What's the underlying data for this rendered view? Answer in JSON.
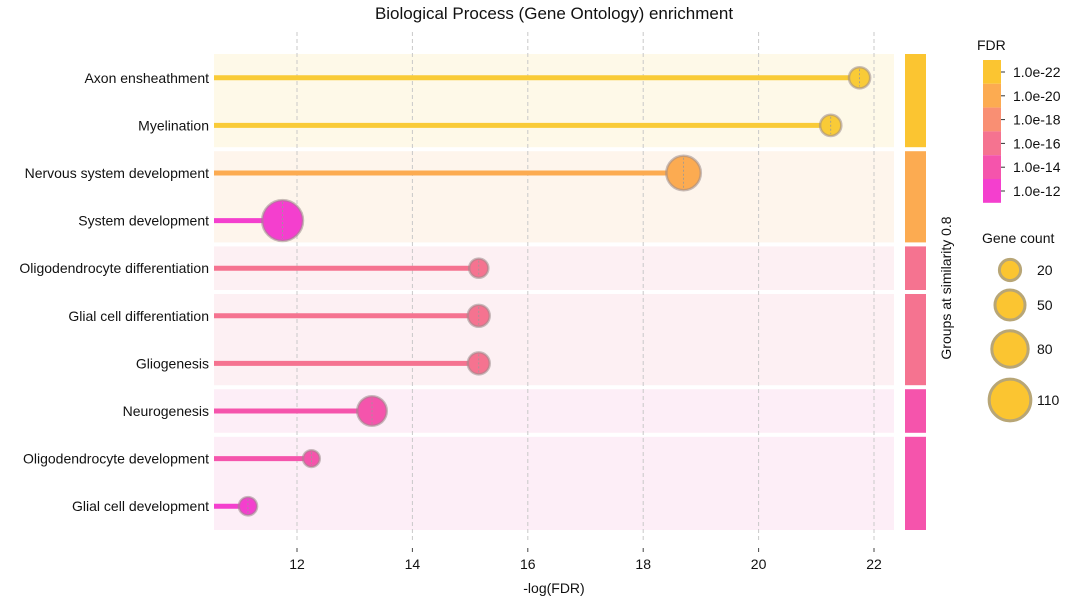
{
  "chart_data": {
    "type": "lollipop",
    "title": "Biological Process (Gene Ontology) enrichment",
    "xlabel": "-log(FDR)",
    "xlim": [
      10.5,
      22.35
    ],
    "xticks": [
      12,
      14,
      16,
      18,
      20,
      22
    ],
    "grid": true,
    "terms": [
      {
        "label": "Axon ensheathment",
        "value": 21.75,
        "genes": 20,
        "color": "#f9cb37"
      },
      {
        "label": "Myelination",
        "value": 21.25,
        "genes": 20,
        "color": "#f9cb37"
      },
      {
        "label": "Nervous system development",
        "value": 18.7,
        "genes": 70,
        "color": "#fcab51"
      },
      {
        "label": "System development",
        "value": 11.75,
        "genes": 105,
        "color": "#f43fce"
      },
      {
        "label": "Oligodendrocyte differentiation",
        "value": 15.15,
        "genes": 15,
        "color": "#f57390"
      },
      {
        "label": "Glial cell differentiation",
        "value": 15.15,
        "genes": 22,
        "color": "#f57390"
      },
      {
        "label": "Gliogenesis",
        "value": 15.15,
        "genes": 22,
        "color": "#f57390"
      },
      {
        "label": "Neurogenesis",
        "value": 13.3,
        "genes": 48,
        "color": "#f554ac"
      },
      {
        "label": "Oligodendrocyte development",
        "value": 12.25,
        "genes": 10,
        "color": "#f554ac"
      },
      {
        "label": "Glial cell development",
        "value": 11.15,
        "genes": 13,
        "color": "#f43fce"
      }
    ],
    "groups": [
      {
        "rows": [
          0,
          1
        ],
        "color": "#fbc531",
        "bg": "#fef9e8"
      },
      {
        "rows": [
          2,
          3
        ],
        "color": "#fcab51",
        "bg": "#fef5ec"
      },
      {
        "rows": [
          4
        ],
        "color": "#f57390",
        "bg": "#fdf0f3"
      },
      {
        "rows": [
          5,
          6
        ],
        "color": "#f57390",
        "bg": "#fdf0f3"
      },
      {
        "rows": [
          7
        ],
        "color": "#f554ac",
        "bg": "#fdeef7"
      },
      {
        "rows": [
          8,
          9
        ],
        "color": "#f554ac",
        "bg": "#fdeef7"
      }
    ],
    "group_axis_label": "Groups at similarity 0.8",
    "fdr_legend": {
      "title": "FDR",
      "entries": [
        {
          "label": "1.0e-22",
          "color": "#fbc531"
        },
        {
          "label": "1.0e-20",
          "color": "#fcab51"
        },
        {
          "label": "1.0e-18",
          "color": "#f98f73"
        },
        {
          "label": "1.0e-16",
          "color": "#f57390"
        },
        {
          "label": "1.0e-14",
          "color": "#f554ac"
        },
        {
          "label": "1.0e-12",
          "color": "#f43fce"
        }
      ]
    },
    "size_legend": {
      "title": "Gene count",
      "entries": [
        {
          "label": "20",
          "genes": 20
        },
        {
          "label": "50",
          "genes": 50
        },
        {
          "label": "80",
          "genes": 80
        },
        {
          "label": "110",
          "genes": 110
        }
      ]
    }
  }
}
